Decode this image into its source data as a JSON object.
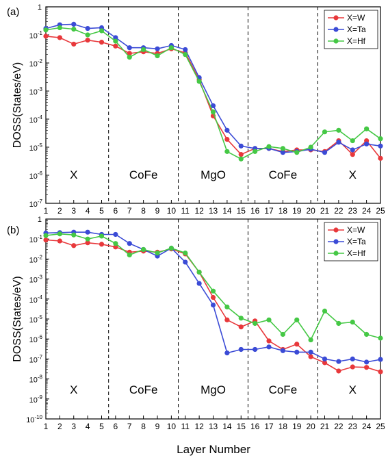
{
  "figure": {
    "xlabel": "Layer Number",
    "colors": {
      "X=W": "#e8383b",
      "X=Ta": "#3b4bd6",
      "X=Hf": "#45c845",
      "axis": "#000000"
    }
  },
  "chart_data": [
    {
      "type": "line",
      "panel_label": "(a)",
      "ylabel": "DOSS(States/eV)",
      "xlabel": "",
      "yscale": "log",
      "ylim_exp": [
        -7,
        0
      ],
      "xlim": [
        1,
        25
      ],
      "x": [
        1,
        2,
        3,
        4,
        5,
        6,
        7,
        8,
        9,
        10,
        11,
        12,
        13,
        14,
        15,
        16,
        17,
        18,
        19,
        20,
        21,
        22,
        23,
        24,
        25
      ],
      "x_ticks": [
        1,
        2,
        3,
        4,
        5,
        6,
        7,
        8,
        9,
        10,
        11,
        12,
        13,
        14,
        15,
        16,
        17,
        18,
        19,
        20,
        21,
        22,
        23,
        24,
        25
      ],
      "y_tick_exponents": [
        -7,
        -6,
        -5,
        -4,
        -3,
        -2,
        -1,
        0
      ],
      "y_tick_labels": [
        {
          "base": "10",
          "exp": "-7"
        },
        {
          "base": "10",
          "exp": "-6"
        },
        {
          "base": "10",
          "exp": "-5"
        },
        {
          "base": "10",
          "exp": "-4"
        },
        {
          "base": "10",
          "exp": "-3"
        },
        {
          "base": "10",
          "exp": "-2"
        },
        {
          "base": "10",
          "exp": "-1"
        },
        {
          "base": "1",
          "exp": ""
        }
      ],
      "dividers": [
        5.5,
        10.5,
        15.5,
        20.5
      ],
      "regions": [
        {
          "label": "X",
          "x": 3
        },
        {
          "label": "CoFe",
          "x": 8
        },
        {
          "label": "MgO",
          "x": 13
        },
        {
          "label": "CoFe",
          "x": 18
        },
        {
          "label": "X",
          "x": 23
        }
      ],
      "legend": "top-right",
      "series": [
        {
          "name": "X=W",
          "color": "#e8383b",
          "values": [
            0.09,
            0.08,
            0.047,
            0.065,
            0.055,
            0.04,
            0.022,
            0.025,
            0.022,
            0.032,
            0.023,
            0.0025,
            0.00013,
            1.9e-05,
            5.5e-06,
            9e-06,
            9e-06,
            7e-06,
            8e-06,
            8e-06,
            7e-06,
            1.7e-05,
            5.5e-06,
            1.7e-05,
            4e-06
          ]
        },
        {
          "name": "X=Ta",
          "color": "#3b4bd6",
          "values": [
            0.17,
            0.23,
            0.24,
            0.17,
            0.18,
            0.08,
            0.035,
            0.035,
            0.032,
            0.042,
            0.03,
            0.003,
            0.0003,
            4e-05,
            1.1e-05,
            9e-06,
            9e-06,
            6.5e-06,
            7e-06,
            8.5e-06,
            6.5e-06,
            1.5e-05,
            8e-06,
            1.3e-05,
            1.1e-05
          ]
        },
        {
          "name": "X=Hf",
          "color": "#45c845",
          "values": [
            0.15,
            0.18,
            0.16,
            0.1,
            0.14,
            0.06,
            0.016,
            0.03,
            0.018,
            0.035,
            0.02,
            0.0022,
            0.00018,
            7e-06,
            3.8e-06,
            7e-06,
            1.05e-05,
            9e-06,
            6.5e-06,
            1e-05,
            3.5e-05,
            4e-05,
            1.7e-05,
            4.5e-05,
            2e-05
          ]
        }
      ]
    },
    {
      "type": "line",
      "panel_label": "(b)",
      "ylabel": "DOSS(States/eV)",
      "xlabel": "Layer Number",
      "yscale": "log",
      "ylim_exp": [
        -10,
        0
      ],
      "xlim": [
        1,
        25
      ],
      "x": [
        1,
        2,
        3,
        4,
        5,
        6,
        7,
        8,
        9,
        10,
        11,
        12,
        13,
        14,
        15,
        16,
        17,
        18,
        19,
        20,
        21,
        22,
        23,
        24,
        25
      ],
      "x_ticks": [
        1,
        2,
        3,
        4,
        5,
        6,
        7,
        8,
        9,
        10,
        11,
        12,
        13,
        14,
        15,
        16,
        17,
        18,
        19,
        20,
        21,
        22,
        23,
        24,
        25
      ],
      "y_tick_exponents": [
        -10,
        -9,
        -8,
        -7,
        -6,
        -5,
        -4,
        -3,
        -2,
        -1,
        0
      ],
      "y_tick_labels": [
        {
          "base": "10",
          "exp": "-10"
        },
        {
          "base": "10",
          "exp": "-9"
        },
        {
          "base": "10",
          "exp": "-8"
        },
        {
          "base": "10",
          "exp": "-7"
        },
        {
          "base": "10",
          "exp": "-6"
        },
        {
          "base": "10",
          "exp": "-5"
        },
        {
          "base": "10",
          "exp": "-4"
        },
        {
          "base": "10",
          "exp": "-3"
        },
        {
          "base": "10",
          "exp": "-2"
        },
        {
          "base": "10",
          "exp": "-1"
        },
        {
          "base": "1",
          "exp": ""
        }
      ],
      "dividers": [
        5.5,
        10.5,
        15.5,
        20.5
      ],
      "regions": [
        {
          "label": "X",
          "x": 3
        },
        {
          "label": "CoFe",
          "x": 8
        },
        {
          "label": "MgO",
          "x": 13
        },
        {
          "label": "CoFe",
          "x": 18
        },
        {
          "label": "X",
          "x": 23
        }
      ],
      "legend": "top-right",
      "series": [
        {
          "name": "X=W",
          "color": "#e8383b",
          "values": [
            0.09,
            0.08,
            0.047,
            0.065,
            0.055,
            0.04,
            0.022,
            0.025,
            0.022,
            0.032,
            0.018,
            0.0022,
            0.00012,
            9e-06,
            4e-06,
            8e-06,
            8e-07,
            3e-07,
            5.5e-07,
            1.3e-07,
            6.5e-08,
            2.5e-08,
            4e-08,
            3.8e-08,
            2.3e-08
          ]
        },
        {
          "name": "X=Ta",
          "color": "#3b4bd6",
          "values": [
            0.2,
            0.21,
            0.22,
            0.22,
            0.17,
            0.17,
            0.06,
            0.03,
            0.014,
            0.035,
            0.007,
            0.0006,
            5e-05,
            2e-07,
            3e-07,
            3e-07,
            4e-07,
            2.6e-07,
            2.2e-07,
            2.2e-07,
            1e-07,
            7.5e-08,
            1e-07,
            7e-08,
            9.5e-08
          ]
        },
        {
          "name": "X=Hf",
          "color": "#45c845",
          "values": [
            0.15,
            0.18,
            0.16,
            0.1,
            0.14,
            0.06,
            0.016,
            0.03,
            0.02,
            0.035,
            0.02,
            0.0022,
            0.00025,
            4e-05,
            1.1e-05,
            6e-06,
            9e-06,
            1.7e-06,
            9e-06,
            9e-07,
            2.5e-05,
            6e-06,
            7e-06,
            1.7e-06,
            1.1e-06
          ]
        }
      ]
    }
  ]
}
